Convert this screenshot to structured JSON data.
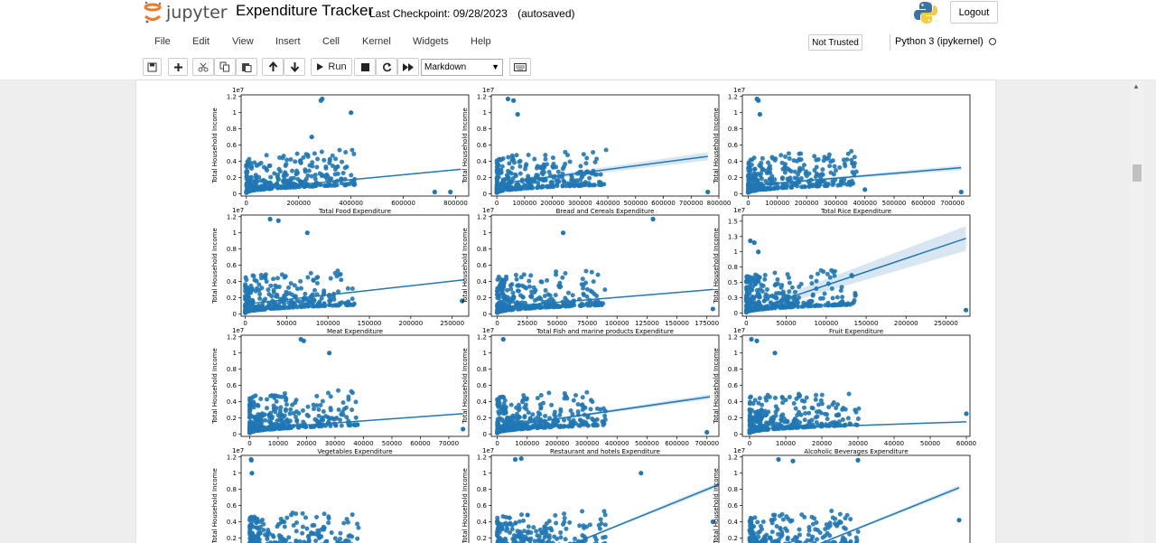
{
  "header": {
    "logo_text": "jupyter",
    "notebook_title": "Expenditure Tracker",
    "checkpoint": "Last Checkpoint: 09/28/2023",
    "save_status": "(autosaved)",
    "logout_label": "Logout"
  },
  "menu": {
    "items": [
      "File",
      "Edit",
      "View",
      "Insert",
      "Cell",
      "Kernel",
      "Widgets",
      "Help"
    ],
    "trust_label": "Not Trusted",
    "kernel_name": "Python 3 (ipykernel)"
  },
  "toolbar": {
    "run_label": "Run",
    "cell_type": "Markdown",
    "icons": [
      "save-icon",
      "plus-icon",
      "cut-icon",
      "copy-icon",
      "paste-icon",
      "arrow-up-icon",
      "arrow-down-icon",
      "run-icon",
      "stop-icon",
      "restart-icon",
      "fast-forward-icon",
      "keyboard-icon"
    ]
  },
  "colors": {
    "scatter": "#1f77b4",
    "band": "#1f77b4",
    "jupyter_orange": "#f37726"
  },
  "chart_data": [
    {
      "type": "scatter",
      "xlabel": "Total Food Expenditure",
      "ylabel": "Total Household Income",
      "offset_text": "1e7",
      "xlim": [
        -20000,
        850000
      ],
      "ylim": [
        -0.03,
        1.22
      ],
      "xticks": [
        0,
        200000,
        400000,
        600000,
        800000
      ],
      "yticks": [
        0.0,
        0.2,
        0.4,
        0.6,
        0.8,
        1.0,
        1.2
      ],
      "regression": [
        [
          0,
          0.05
        ],
        [
          820000,
          0.3
        ]
      ],
      "outliers": [
        [
          290000,
          1.17
        ],
        [
          285000,
          1.15
        ],
        [
          400000,
          1.0
        ],
        [
          720000,
          0.02
        ],
        [
          780000,
          0.02
        ],
        [
          250000,
          0.7
        ]
      ]
    },
    {
      "type": "scatter",
      "xlabel": "Bread and Cereals Expenditure",
      "ylabel": "Total Household Income",
      "offset_text": "1e7",
      "xlim": [
        -20000,
        800000
      ],
      "ylim": [
        -0.03,
        1.22
      ],
      "xticks": [
        0,
        100000,
        200000,
        300000,
        400000,
        500000,
        600000,
        700000,
        800000
      ],
      "yticks": [
        0.0,
        0.2,
        0.4,
        0.6,
        0.8,
        1.0,
        1.2
      ],
      "regression": [
        [
          0,
          0.12
        ],
        [
          760000,
          0.46
        ]
      ],
      "band": 0.05,
      "outliers": [
        [
          40000,
          1.17
        ],
        [
          60000,
          1.15
        ],
        [
          75000,
          0.98
        ],
        [
          760000,
          0.02
        ]
      ]
    },
    {
      "type": "scatter",
      "xlabel": "Total Rice Expenditure",
      "ylabel": "Total Household Income",
      "offset_text": "1e7",
      "xlim": [
        -20000,
        760000
      ],
      "ylim": [
        -0.03,
        1.22
      ],
      "xticks": [
        0,
        100000,
        200000,
        300000,
        400000,
        500000,
        600000,
        700000
      ],
      "yticks": [
        0.0,
        0.2,
        0.4,
        0.6,
        0.8,
        1.0,
        1.2
      ],
      "regression": [
        [
          0,
          0.1
        ],
        [
          730000,
          0.32
        ]
      ],
      "band": 0.03,
      "outliers": [
        [
          30000,
          1.17
        ],
        [
          35000,
          1.15
        ],
        [
          40000,
          0.98
        ],
        [
          400000,
          0.05
        ],
        [
          730000,
          0.02
        ]
      ]
    },
    {
      "type": "scatter",
      "xlabel": "Meat Expenditure",
      "ylabel": "Total Household Income",
      "offset_text": "1e7",
      "xlim": [
        -5000,
        270000
      ],
      "ylim": [
        -0.03,
        1.22
      ],
      "xticks": [
        0,
        50000,
        100000,
        150000,
        200000,
        250000
      ],
      "yticks": [
        0.0,
        0.2,
        0.4,
        0.6,
        0.8,
        1.0,
        1.2
      ],
      "regression": [
        [
          0,
          0.12
        ],
        [
          265000,
          0.42
        ]
      ],
      "outliers": [
        [
          30000,
          1.17
        ],
        [
          40000,
          1.15
        ],
        [
          75000,
          1.0
        ],
        [
          262000,
          0.16
        ]
      ]
    },
    {
      "type": "scatter",
      "xlabel": "Total Fish and  marine products Expenditure",
      "ylabel": "Total Household Income",
      "offset_text": "1e7",
      "xlim": [
        -5000,
        185000
      ],
      "ylim": [
        -0.03,
        1.22
      ],
      "xticks": [
        0,
        25000,
        50000,
        75000,
        100000,
        125000,
        150000,
        175000
      ],
      "yticks": [
        0.0,
        0.2,
        0.4,
        0.6,
        0.8,
        1.0,
        1.2
      ],
      "regression": [
        [
          0,
          0.08
        ],
        [
          180000,
          0.3
        ]
      ],
      "outliers": [
        [
          130000,
          1.17
        ],
        [
          55000,
          1.0
        ],
        [
          180000,
          0.06
        ]
      ]
    },
    {
      "type": "scatter",
      "xlabel": "Fruit Expenditure",
      "ylabel": "Total Household Income",
      "offset_text": "1e7",
      "xlim": [
        -5000,
        280000
      ],
      "ylim": [
        -0.05,
        1.6
      ],
      "xticks": [
        0,
        50000,
        100000,
        150000,
        200000,
        250000
      ],
      "yticks": [
        0.0,
        0.25,
        0.5,
        0.75,
        1.0,
        1.25,
        1.5
      ],
      "regression": [
        [
          30000,
          0.15
        ],
        [
          275000,
          1.22
        ]
      ],
      "band": 0.2,
      "outliers": [
        [
          5000,
          1.18
        ],
        [
          10000,
          1.15
        ],
        [
          15000,
          1.0
        ],
        [
          275000,
          0.05
        ]
      ]
    },
    {
      "type": "scatter",
      "xlabel": "Vegetables Expenditure",
      "ylabel": "Total Household Income",
      "offset_text": "1e7",
      "xlim": [
        -3000,
        77000
      ],
      "ylim": [
        -0.03,
        1.22
      ],
      "xticks": [
        0,
        10000,
        20000,
        30000,
        40000,
        50000,
        60000,
        70000
      ],
      "yticks": [
        0.0,
        0.2,
        0.4,
        0.6,
        0.8,
        1.0,
        1.2
      ],
      "regression": [
        [
          0,
          0.06
        ],
        [
          75000,
          0.25
        ]
      ],
      "outliers": [
        [
          18000,
          1.17
        ],
        [
          19000,
          1.15
        ],
        [
          28000,
          1.0
        ],
        [
          75000,
          0.06
        ]
      ]
    },
    {
      "type": "scatter",
      "xlabel": "Restaurant and hotels Expenditure",
      "ylabel": "Total Household Income",
      "offset_text": "1e7",
      "xlim": [
        -20000,
        740000
      ],
      "ylim": [
        -0.03,
        1.22
      ],
      "xticks": [
        0,
        100000,
        200000,
        300000,
        400000,
        500000,
        600000,
        700000
      ],
      "yticks": [
        0.0,
        0.2,
        0.4,
        0.6,
        0.8,
        1.0,
        1.2
      ],
      "regression": [
        [
          0,
          0.08
        ],
        [
          710000,
          0.46
        ]
      ],
      "band": 0.03,
      "outliers": [
        [
          20000,
          1.17
        ],
        [
          700000,
          0.02
        ]
      ]
    },
    {
      "type": "scatter",
      "xlabel": "Alcoholic Beverages Expenditure",
      "ylabel": "Total Household Income",
      "offset_text": "1e7",
      "xlim": [
        -2000,
        61000
      ],
      "ylim": [
        -0.03,
        1.22
      ],
      "xticks": [
        0,
        10000,
        20000,
        30000,
        40000,
        50000,
        60000
      ],
      "yticks": [
        0.0,
        0.2,
        0.4,
        0.6,
        0.8,
        1.0,
        1.2
      ],
      "regression": [
        [
          0,
          0.06
        ],
        [
          60000,
          0.15
        ]
      ],
      "outliers": [
        [
          500,
          1.17
        ],
        [
          2000,
          1.15
        ],
        [
          7000,
          1.0
        ],
        [
          60000,
          0.25
        ]
      ]
    },
    {
      "type": "scatter",
      "xlabel": "",
      "ylabel": "Total Household Income",
      "offset_text": "1e7",
      "xlim": [
        -3000,
        77000
      ],
      "ylim": [
        -0.03,
        1.22
      ],
      "xticks": [],
      "yticks": [
        0.2,
        0.4,
        0.6,
        0.8,
        1.0,
        1.2
      ],
      "regression": [],
      "outliers": [
        [
          500,
          1.17
        ],
        [
          600,
          1.16
        ],
        [
          800,
          1.0
        ]
      ]
    },
    {
      "type": "scatter",
      "xlabel": "",
      "ylabel": "Total Household Income",
      "offset_text": "1e7",
      "xlim": [
        -20000,
        740000
      ],
      "ylim": [
        -0.03,
        1.22
      ],
      "xticks": [],
      "yticks": [
        0.2,
        0.4,
        0.6,
        0.8,
        1.0,
        1.2
      ],
      "regression": [
        [
          200000,
          0.05
        ],
        [
          740000,
          0.86
        ]
      ],
      "band": 0.03,
      "outliers": [
        [
          60000,
          1.17
        ],
        [
          80000,
          1.18
        ],
        [
          480000,
          1.0
        ],
        [
          720000,
          0.4
        ]
      ]
    },
    {
      "type": "scatter",
      "xlabel": "",
      "ylabel": "Total Household Income",
      "offset_text": "1e7",
      "xlim": [
        -2000,
        61000
      ],
      "ylim": [
        -0.03,
        1.22
      ],
      "xticks": [],
      "yticks": [
        0.2,
        0.4,
        0.6,
        0.8,
        1.0,
        1.2
      ],
      "regression": [
        [
          15000,
          0.05
        ],
        [
          58000,
          0.82
        ]
      ],
      "band": 0.03,
      "outliers": [
        [
          8000,
          1.17
        ],
        [
          12000,
          1.15
        ],
        [
          30000,
          1.16
        ],
        [
          58000,
          0.42
        ]
      ]
    }
  ]
}
